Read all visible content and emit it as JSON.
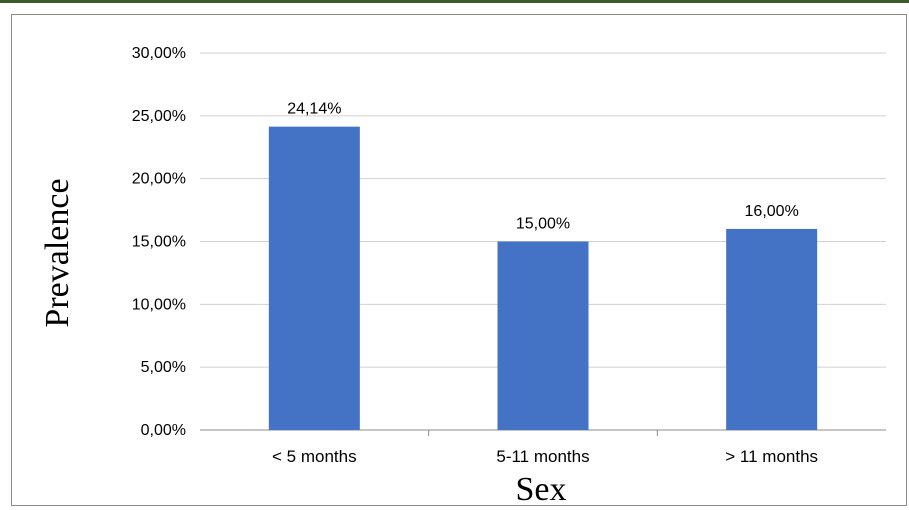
{
  "chart_data": {
    "type": "bar",
    "title": "",
    "xlabel": "Sex",
    "ylabel": "Prevalence",
    "categories": [
      "< 5 months",
      "5-11 months",
      "> 11 months"
    ],
    "values": [
      24.14,
      15.0,
      16.0
    ],
    "data_labels": [
      "24,14%",
      "15,00%",
      "16,00%"
    ],
    "ylim": [
      0,
      30
    ],
    "yticks": [
      {
        "value": 0,
        "label": "0,00%"
      },
      {
        "value": 5,
        "label": "5,00%"
      },
      {
        "value": 10,
        "label": "10,00%"
      },
      {
        "value": 15,
        "label": "15,00%"
      },
      {
        "value": 20,
        "label": "20,00%"
      },
      {
        "value": 25,
        "label": "25,00%"
      },
      {
        "value": 30,
        "label": "30,00%"
      }
    ],
    "grid": true,
    "legend": "none",
    "bar_color": "#4472c4",
    "grid_color": "#d0d0d0"
  }
}
